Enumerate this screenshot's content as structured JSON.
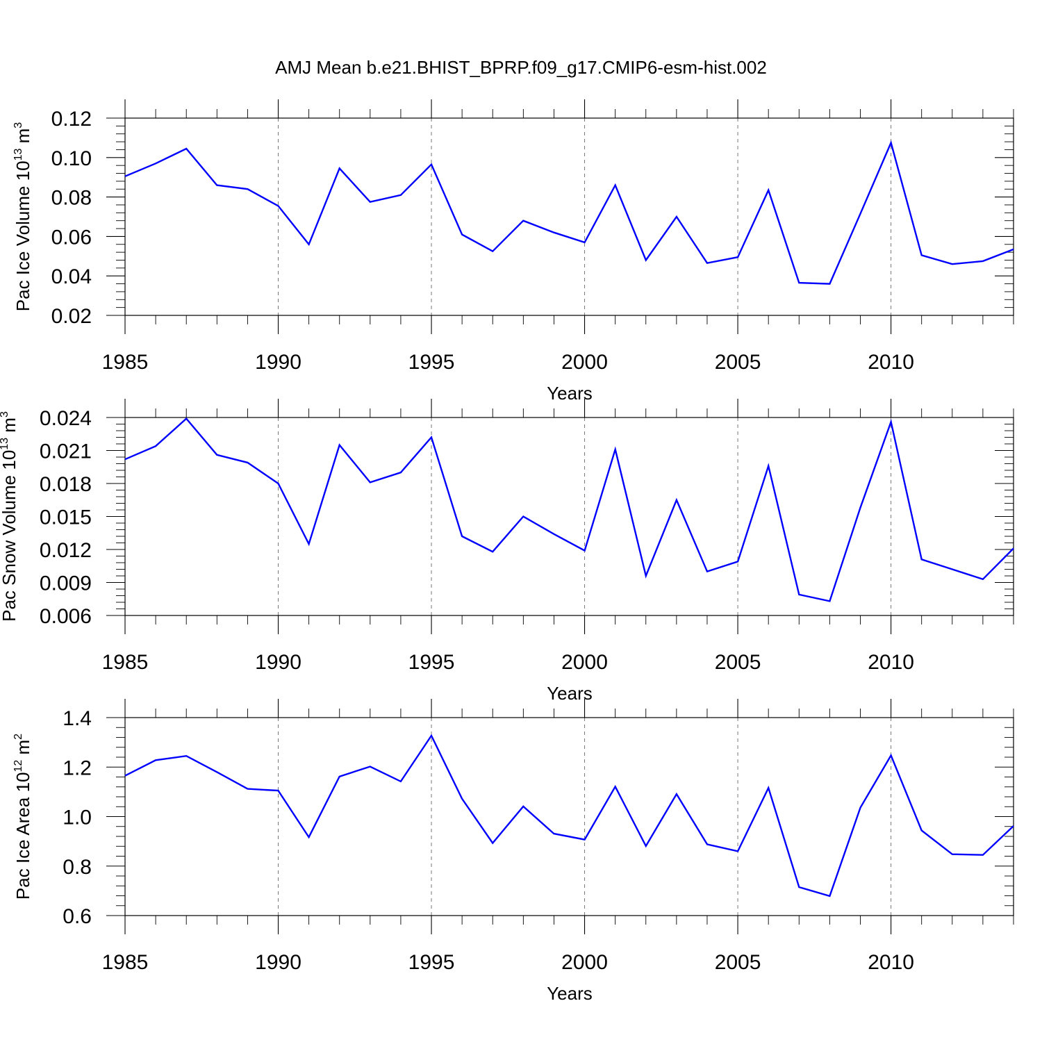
{
  "title": "AMJ Mean b.e21.BHIST_BPRP.f09_g17.CMIP6-esm-hist.002",
  "line_color": "#0000ff",
  "chart_data": [
    {
      "type": "line",
      "xlabel": "Years",
      "ylabel": "Pac Ice Volume 10",
      "ylabel_sup_exp": "13",
      "ylabel_unit": " m",
      "ylabel_unit_sup": "3",
      "xlim": [
        1985,
        2014
      ],
      "ylim": [
        0.02,
        0.12
      ],
      "x_ticks": [
        "1985",
        "1990",
        "1995",
        "2000",
        "2005",
        "2010"
      ],
      "y_ticks": [
        "0.02",
        "0.04",
        "0.06",
        "0.08",
        "0.10",
        "0.12"
      ],
      "grid": "vertical dashed at major x ticks",
      "x": [
        1985,
        1986,
        1987,
        1988,
        1989,
        1990,
        1991,
        1992,
        1993,
        1994,
        1995,
        1996,
        1997,
        1998,
        1999,
        2000,
        2001,
        2002,
        2003,
        2004,
        2005,
        2006,
        2007,
        2008,
        2009,
        2010,
        2011,
        2012,
        2013,
        2014
      ],
      "values": [
        0.0905,
        0.097,
        0.1045,
        0.086,
        0.084,
        0.0755,
        0.056,
        0.0945,
        0.0775,
        0.081,
        0.0965,
        0.061,
        0.0525,
        0.068,
        0.062,
        0.057,
        0.086,
        0.048,
        0.07,
        0.0465,
        0.0495,
        0.0835,
        0.0365,
        0.036,
        0.0715,
        0.1075,
        0.0505,
        0.046,
        0.0475,
        0.0535
      ]
    },
    {
      "type": "line",
      "xlabel": "Years",
      "ylabel": "Pac Snow Volume 10",
      "ylabel_sup_exp": "13",
      "ylabel_unit": " m",
      "ylabel_unit_sup": "3",
      "xlim": [
        1985,
        2014
      ],
      "ylim": [
        0.006,
        0.024
      ],
      "x_ticks": [
        "1985",
        "1990",
        "1995",
        "2000",
        "2005",
        "2010"
      ],
      "y_ticks": [
        "0.006",
        "0.009",
        "0.012",
        "0.015",
        "0.018",
        "0.021",
        "0.024"
      ],
      "grid": "vertical dashed at major x ticks",
      "x": [
        1985,
        1986,
        1987,
        1988,
        1989,
        1990,
        1991,
        1992,
        1993,
        1994,
        1995,
        1996,
        1997,
        1998,
        1999,
        2000,
        2001,
        2002,
        2003,
        2004,
        2005,
        2006,
        2007,
        2008,
        2009,
        2010,
        2011,
        2012,
        2013,
        2014
      ],
      "values": [
        0.0202,
        0.0214,
        0.0239,
        0.0206,
        0.0199,
        0.018,
        0.0125,
        0.0215,
        0.0181,
        0.019,
        0.0222,
        0.0132,
        0.0118,
        0.015,
        0.0134,
        0.0119,
        0.0211,
        0.0096,
        0.0165,
        0.01,
        0.0109,
        0.0196,
        0.0079,
        0.0073,
        0.0158,
        0.0236,
        0.0111,
        0.0102,
        0.0093,
        0.0121
      ]
    },
    {
      "type": "line",
      "xlabel": "Years",
      "ylabel": "Pac Ice Area 10",
      "ylabel_sup_exp": "12",
      "ylabel_unit": " m",
      "ylabel_unit_sup": "2",
      "xlim": [
        1985,
        2014
      ],
      "ylim": [
        0.6,
        1.4
      ],
      "x_ticks": [
        "1985",
        "1990",
        "1995",
        "2000",
        "2005",
        "2010"
      ],
      "y_ticks": [
        "0.6",
        "0.8",
        "1.0",
        "1.2",
        "1.4"
      ],
      "grid": "vertical dashed at major x ticks",
      "x": [
        1985,
        1986,
        1987,
        1988,
        1989,
        1990,
        1991,
        1992,
        1993,
        1994,
        1995,
        1996,
        1997,
        1998,
        1999,
        2000,
        2001,
        2002,
        2003,
        2004,
        2005,
        2006,
        2007,
        2008,
        2009,
        2010,
        2011,
        2012,
        2013,
        2014
      ],
      "values": [
        1.165,
        1.228,
        1.245,
        1.18,
        1.112,
        1.105,
        0.917,
        1.162,
        1.202,
        1.142,
        1.327,
        1.072,
        0.893,
        1.041,
        0.931,
        0.907,
        1.121,
        0.881,
        1.091,
        0.888,
        0.86,
        1.116,
        0.715,
        0.679,
        1.036,
        1.247,
        0.944,
        0.848,
        0.845,
        0.962
      ]
    }
  ]
}
